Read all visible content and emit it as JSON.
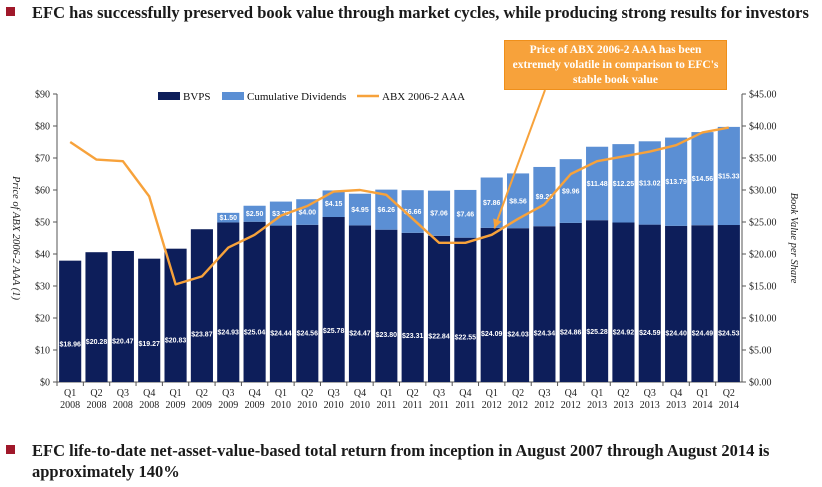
{
  "headline": "EFC has successfully preserved book value through market cycles, while producing strong results for investors",
  "footnote": "EFC life-to-date net-asset-value-based total return from inception in August 2007 through August 2014 is approximately 140%",
  "callout": "Price of ABX 2006-2 AAA has been extremely volatile in comparison to EFC's stable book value",
  "colors": {
    "bullet": "#a0182a",
    "bvps": "#0d1e5a",
    "dividends": "#5b8fd4",
    "abx": "#f7a23b"
  },
  "chart_data": {
    "type": "bar",
    "stacked": true,
    "categories": [
      [
        "Q1",
        "2008"
      ],
      [
        "Q2",
        "2008"
      ],
      [
        "Q3",
        "2008"
      ],
      [
        "Q4",
        "2008"
      ],
      [
        "Q1",
        "2009"
      ],
      [
        "Q2",
        "2009"
      ],
      [
        "Q3",
        "2009"
      ],
      [
        "Q4",
        "2009"
      ],
      [
        "Q1",
        "2010"
      ],
      [
        "Q2",
        "2010"
      ],
      [
        "Q3",
        "2010"
      ],
      [
        "Q4",
        "2010"
      ],
      [
        "Q1",
        "2011"
      ],
      [
        "Q2",
        "2011"
      ],
      [
        "Q3",
        "2011"
      ],
      [
        "Q4",
        "2011"
      ],
      [
        "Q1",
        "2012"
      ],
      [
        "Q2",
        "2012"
      ],
      [
        "Q3",
        "2012"
      ],
      [
        "Q4",
        "2012"
      ],
      [
        "Q1",
        "2013"
      ],
      [
        "Q2",
        "2013"
      ],
      [
        "Q3",
        "2013"
      ],
      [
        "Q4",
        "2013"
      ],
      [
        "Q1",
        "2014"
      ],
      [
        "Q2",
        "2014"
      ]
    ],
    "series": [
      {
        "name": "BVPS",
        "axis": "right",
        "values": [
          18.96,
          20.28,
          20.47,
          19.27,
          20.83,
          23.87,
          24.93,
          25.04,
          24.44,
          24.56,
          25.78,
          24.47,
          23.8,
          23.31,
          22.84,
          22.55,
          24.09,
          24.03,
          24.34,
          24.86,
          25.28,
          24.92,
          24.59,
          24.4,
          24.49,
          24.53
        ],
        "labels": [
          "$18.96",
          "$20.28",
          "$20.47",
          "$19.27",
          "$20.83",
          "$23.87",
          "$24.93",
          "$25.04",
          "$24.44",
          "$24.56",
          "$25.78",
          "$24.47",
          "$23.80",
          "$23.31",
          "$22.84",
          "$22.55",
          "$24.09",
          "$24.03",
          "$24.34",
          "$24.86",
          "$25.28",
          "$24.92",
          "$24.59",
          "$24.40",
          "$24.49",
          "$24.53"
        ]
      },
      {
        "name": "Cumulative Dividends",
        "axis": "right",
        "values": [
          0,
          0,
          0,
          0,
          0,
          0,
          1.5,
          2.5,
          3.75,
          4.0,
          4.15,
          4.95,
          6.26,
          6.66,
          7.06,
          7.46,
          7.86,
          8.56,
          9.26,
          9.96,
          11.48,
          12.25,
          13.02,
          13.79,
          14.56,
          15.33
        ],
        "labels": [
          "",
          "",
          "",
          "",
          "",
          "",
          "$1.50",
          "$2.50",
          "$3.75",
          "$4.00",
          "$4.15",
          "$4.95",
          "$6.26",
          "$6.66",
          "$7.06",
          "$7.46",
          "$7.86",
          "$8.56",
          "$9.26",
          "$9.96",
          "$11.48",
          "$12.25",
          "$13.02",
          "$13.79",
          "$14.56",
          "$15.33"
        ]
      },
      {
        "name": "ABX 2006-2 AAA",
        "axis": "left",
        "type": "line",
        "values": [
          75,
          69.5,
          69,
          58,
          30.5,
          33,
          42,
          46,
          52,
          55,
          59.5,
          60,
          58.5,
          51,
          43.5,
          43.5,
          46,
          51,
          55.5,
          65,
          69,
          70.5,
          72,
          74,
          78,
          79.5
        ]
      }
    ],
    "y_left": {
      "title": "Price of ABX 2006-2 AAA (1)",
      "range": [
        0,
        90
      ],
      "ticks": [
        "$0",
        "$10",
        "$20",
        "$30",
        "$40",
        "$50",
        "$60",
        "$70",
        "$80",
        "$90"
      ]
    },
    "y_right": {
      "title": "Book Value per Share",
      "range": [
        0,
        45
      ],
      "ticks": [
        "$0.00",
        "$5.00",
        "$10.00",
        "$15.00",
        "$20.00",
        "$25.00",
        "$30.00",
        "$35.00",
        "$40.00",
        "$45.00"
      ]
    },
    "legend": "top-left",
    "grid": false
  }
}
